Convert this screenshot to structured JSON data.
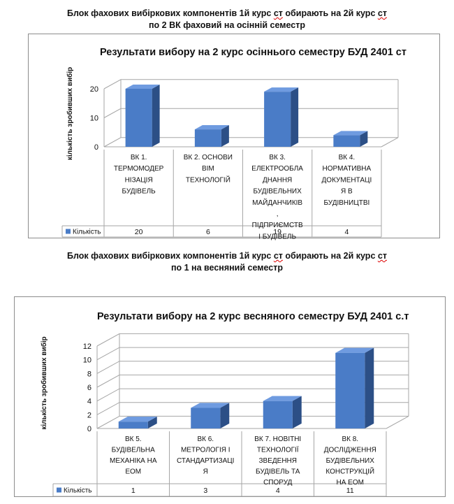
{
  "section1": {
    "heading_line1_a": "Блок фахових вибіркових компонентів  1й курс ",
    "heading_line1_b": "ст",
    "heading_line1_c": "   обирають на 2й курс  ",
    "heading_line1_d": "ст",
    "heading_line2": "по 2 ВК фаховий на осінній семестр"
  },
  "section2": {
    "heading_line1_a": "Блок фахових вибіркових компонентів 1й курс ",
    "heading_line1_b": "ст",
    "heading_line1_c": "  обирають на 2й курс  ",
    "heading_line1_d": "ст",
    "heading_line2": "по  1 на весняний семестр"
  },
  "colors": {
    "bar_front": "#4a7cc7",
    "bar_side": "#2c4f86",
    "bar_top": "#6f9be0"
  },
  "chart_data": [
    {
      "type": "bar",
      "title": "Результати вибору на 2 курс осіннього семестру  БУД 2401 ст",
      "ylabel": "кількість зробивших вибір",
      "legend_label": "Кількість",
      "ylim": [
        0,
        20
      ],
      "yticks": [
        0,
        10,
        20
      ],
      "categories": [
        [
          "ВК 1.",
          "ТЕРМОМОДЕР",
          "НІЗАЦІЯ",
          "БУДІВЕЛЬ"
        ],
        [
          "ВК 2. ОСНОВИ",
          "BIM",
          "ТЕХНОЛОГІЙ"
        ],
        [
          "ВК 3.",
          "ЕЛЕКТРООБЛА",
          "ДНАННЯ",
          "БУДІВЕЛЬНИХ",
          "МАЙДАНЧИКІВ",
          ",",
          "ПІДПРИЄМСТВ",
          "І БУДІВЕЛЬ"
        ],
        [
          "ВК 4.",
          "НОРМАТИВНА",
          "ДОКУМЕНТАЦІ",
          "Я В",
          "БУДІВНИЦТВІ"
        ]
      ],
      "values": [
        20,
        6,
        19,
        4
      ],
      "value_labels": [
        "20",
        "6",
        "19",
        "4"
      ]
    },
    {
      "type": "bar",
      "title": "Результати вибору на 2 курс весняного семестру БУД 2401 с.т",
      "ylabel": "кількість зробивших вибір",
      "legend_label": "Кількість",
      "ylim": [
        0,
        12
      ],
      "yticks": [
        0,
        2,
        4,
        6,
        8,
        10,
        12
      ],
      "categories": [
        [
          "ВК 5.",
          "БУДІВЕЛЬНА",
          "МЕХАНІКА  НА",
          "ЕОМ"
        ],
        [
          "ВК 6.",
          "МЕТРОЛОГІЯ І",
          "СТАНДАРТИЗАЦІ",
          "Я"
        ],
        [
          "ВК 7.  НОВІТНІ",
          "ТЕХНОЛОГІЇ",
          "ЗВЕДЕННЯ",
          "БУДІВЕЛЬ ТА",
          "СПОРУД"
        ],
        [
          "ВК 8.",
          "ДОСЛІДЖЕННЯ",
          "БУДІВЕЛЬНИХ",
          "КОНСТРУКЦІЙ",
          "НА ЕОМ"
        ]
      ],
      "values": [
        1,
        3,
        4,
        11
      ],
      "value_labels": [
        "1",
        "3",
        "4",
        "11"
      ]
    }
  ]
}
